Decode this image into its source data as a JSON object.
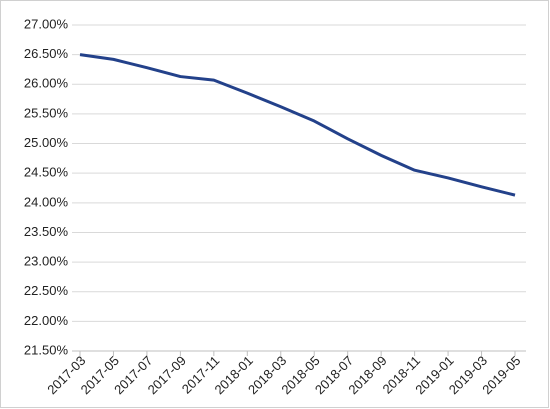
{
  "chart_data": {
    "type": "line",
    "categories": [
      "2017-03",
      "2017-05",
      "2017-07",
      "2017-09",
      "2017-11",
      "2018-01",
      "2018-03",
      "2018-05",
      "2018-07",
      "2018-09",
      "2018-11",
      "2019-01",
      "2019-03",
      "2019-05"
    ],
    "series": [
      {
        "color": "#23418a",
        "values": [
          26.5,
          26.42,
          26.28,
          26.13,
          26.07,
          25.85,
          25.62,
          25.38,
          25.08,
          24.8,
          24.55,
          24.42,
          24.27,
          24.13
        ]
      }
    ],
    "ylim": [
      21.5,
      27.0
    ],
    "yticks": [
      {
        "value": 21.5,
        "label": "21.50%"
      },
      {
        "value": 22.0,
        "label": "22.00%"
      },
      {
        "value": 22.5,
        "label": "22.50%"
      },
      {
        "value": 23.0,
        "label": "23.00%"
      },
      {
        "value": 23.5,
        "label": "23.50%"
      },
      {
        "value": 24.0,
        "label": "24.00%"
      },
      {
        "value": 24.5,
        "label": "24.50%"
      },
      {
        "value": 25.0,
        "label": "25.00%"
      },
      {
        "value": 25.5,
        "label": "25.50%"
      },
      {
        "value": 26.0,
        "label": "26.00%"
      },
      {
        "value": 26.5,
        "label": "26.50%"
      },
      {
        "value": 27.0,
        "label": "27.00%"
      }
    ],
    "grid": true
  }
}
